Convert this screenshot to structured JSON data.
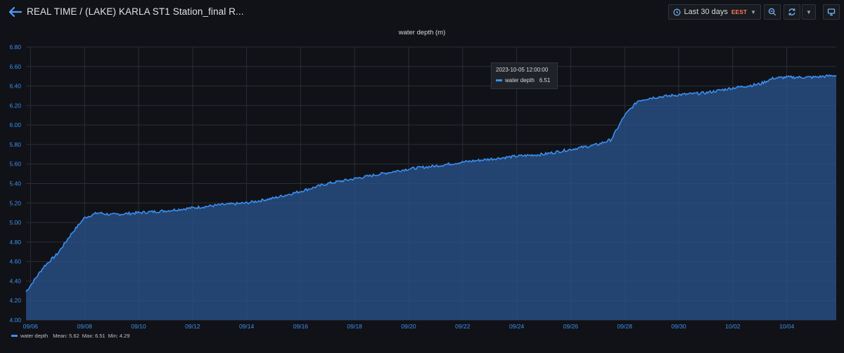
{
  "header": {
    "title": "REAL TIME  / (LAKE) KARLA ST1 Station_final R...",
    "time_range_label": "Last 30 days",
    "timezone_label": "EEST"
  },
  "panel": {
    "title": "water depth (m)"
  },
  "tooltip": {
    "time": "2023-10-05 12:00:00",
    "series_name": "water depth",
    "value": "6.51"
  },
  "legend": {
    "series_name": "water depth",
    "mean_text": "Mean: 5.62",
    "max_text": "Max: 6.51",
    "min_text": "Min: 4.29"
  },
  "colors": {
    "background": "#111217",
    "series": "#3b8ff0",
    "fill": "#2a5490",
    "grid": "#2a2e37",
    "axis_text": "#3b8ff0"
  },
  "icons": [
    "back-arrow-icon",
    "clock-icon",
    "zoom-out-icon",
    "refresh-icon",
    "tv-mode-icon"
  ],
  "chart_data": {
    "type": "area",
    "title": "water depth (m)",
    "xlabel": "",
    "ylabel": "",
    "ylim": [
      4.0,
      6.8
    ],
    "y_ticks": [
      "4.00",
      "4.20",
      "4.40",
      "4.60",
      "4.80",
      "5.00",
      "5.20",
      "5.40",
      "5.60",
      "5.80",
      "6.00",
      "6.20",
      "6.40",
      "6.60",
      "6.80"
    ],
    "x_tick_labels": [
      "09/06",
      "09/08",
      "09/10",
      "09/12",
      "09/14",
      "09/16",
      "09/18",
      "09/20",
      "09/22",
      "09/24",
      "09/26",
      "09/28",
      "09/30",
      "10/02",
      "10/04"
    ],
    "x_range": [
      "2023-09-05 20:00",
      "2023-10-05 20:00"
    ],
    "grid": true,
    "legend_position": "bottom-left",
    "series": [
      {
        "name": "water depth",
        "x": [
          "2023-09-05 20:00",
          "2023-09-06 12:00",
          "2023-09-07 00:00",
          "2023-09-07 12:00",
          "2023-09-08 00:00",
          "2023-09-08 12:00",
          "2023-09-09 00:00",
          "2023-09-10 00:00",
          "2023-09-11 00:00",
          "2023-09-12 00:00",
          "2023-09-13 00:00",
          "2023-09-14 00:00",
          "2023-09-15 00:00",
          "2023-09-16 00:00",
          "2023-09-17 00:00",
          "2023-09-18 00:00",
          "2023-09-19 00:00",
          "2023-09-20 00:00",
          "2023-09-21 00:00",
          "2023-09-22 00:00",
          "2023-09-23 00:00",
          "2023-09-24 00:00",
          "2023-09-25 00:00",
          "2023-09-26 00:00",
          "2023-09-27 00:00",
          "2023-09-27 12:00",
          "2023-09-28 00:00",
          "2023-09-28 12:00",
          "2023-09-29 00:00",
          "2023-09-30 00:00",
          "2023-10-01 00:00",
          "2023-10-02 00:00",
          "2023-10-03 00:00",
          "2023-10-03 12:00",
          "2023-10-04 00:00",
          "2023-10-05 00:00",
          "2023-10-05 20:00"
        ],
        "y": [
          4.29,
          4.55,
          4.68,
          4.88,
          5.05,
          5.1,
          5.08,
          5.1,
          5.12,
          5.15,
          5.18,
          5.2,
          5.25,
          5.32,
          5.4,
          5.45,
          5.5,
          5.55,
          5.58,
          5.62,
          5.65,
          5.68,
          5.7,
          5.75,
          5.8,
          5.85,
          6.1,
          6.25,
          6.28,
          6.31,
          6.33,
          6.38,
          6.42,
          6.48,
          6.49,
          6.49,
          6.51
        ]
      }
    ]
  }
}
